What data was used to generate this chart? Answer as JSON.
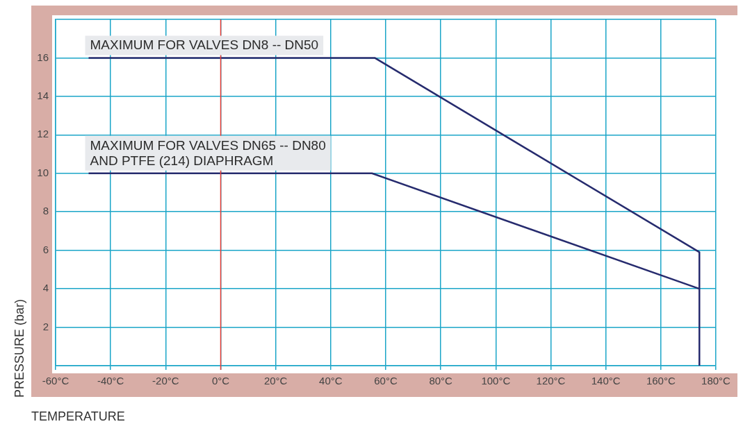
{
  "chart_data": {
    "type": "line",
    "xlabel": "TEMPERATURE",
    "ylabel": "PRESSURE (bar)",
    "series": [
      {
        "name": "MAXIMUM FOR VALVES DN8 -- DN50",
        "color": "#262b6e",
        "x": [
          -48,
          56,
          174,
          174
        ],
        "values": [
          16,
          16,
          5.9,
          0
        ]
      },
      {
        "name": "MAXIMUM FOR VALVES DN65 -- DN80\nAND PTFE (214) DIAPHRAGM",
        "color": "#262b6e",
        "x": [
          -48,
          55,
          174
        ],
        "values": [
          10,
          10,
          4
        ]
      }
    ],
    "xlim": [
      -60,
      180
    ],
    "xticks": [
      {
        "value": -60,
        "label": "-60°C"
      },
      {
        "value": -40,
        "label": "-40°C"
      },
      {
        "value": -20,
        "label": "-20°C"
      },
      {
        "value": 0,
        "label": "0°C"
      },
      {
        "value": 20,
        "label": "20°C"
      },
      {
        "value": 40,
        "label": "40°C"
      },
      {
        "value": 60,
        "label": "60°C"
      },
      {
        "value": 80,
        "label": "80°C"
      },
      {
        "value": 100,
        "label": "100°C"
      },
      {
        "value": 120,
        "label": "120°C"
      },
      {
        "value": 140,
        "label": "140°C"
      },
      {
        "value": 160,
        "label": "160°C"
      },
      {
        "value": 180,
        "label": "180°C"
      }
    ],
    "ylim": [
      0,
      18
    ],
    "yticks": [
      {
        "value": 0,
        "label": null
      },
      2,
      4,
      6,
      8,
      10,
      12,
      14,
      16,
      {
        "value": 18,
        "label": null
      }
    ],
    "ref_lines": [
      {
        "axis": "x",
        "value": 0,
        "color": "#e8403a"
      }
    ],
    "grid": true,
    "legend": false,
    "marker": "none",
    "line_style": "solid"
  }
}
